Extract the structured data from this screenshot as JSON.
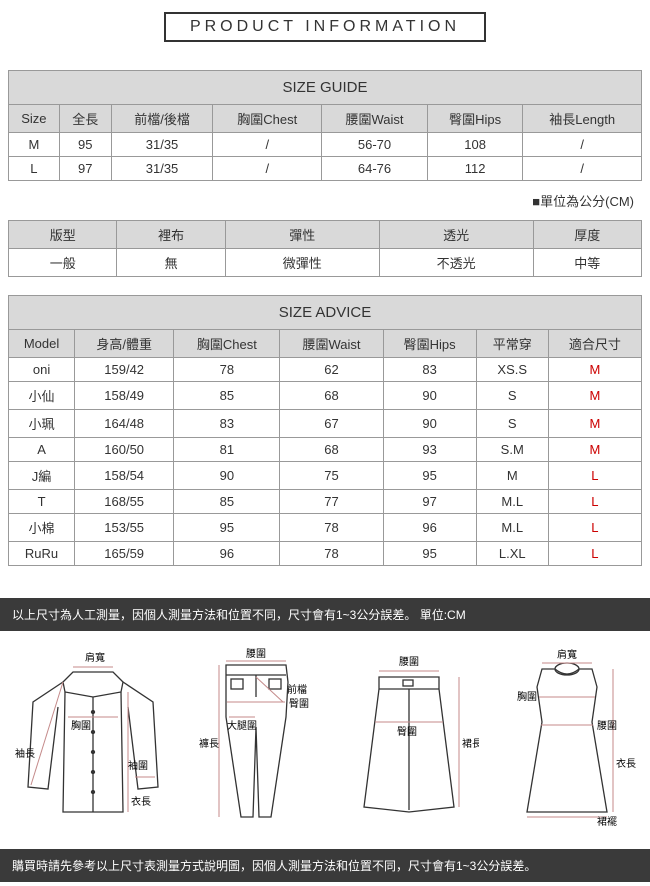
{
  "page_title": "PRODUCT INFORMATION",
  "colors": {
    "border": "#999999",
    "header_bg": "#d9d9d9",
    "text": "#333333",
    "red": "#cc0000",
    "dark_bar_bg": "#3a3a3a",
    "dark_bar_text": "#ffffff",
    "dim_line": "#c48a8a"
  },
  "size_guide": {
    "title": "SIZE GUIDE",
    "columns": [
      "Size",
      "全長",
      "前檔/後檔",
      "胸圍Chest",
      "腰圍Waist",
      "臀圍Hips",
      "袖長Length"
    ],
    "rows": [
      [
        "M",
        "95",
        "31/35",
        "/",
        "56-70",
        "108",
        "/"
      ],
      [
        "L",
        "97",
        "31/35",
        "/",
        "64-76",
        "112",
        "/"
      ]
    ],
    "unit_note": "■單位為公分(CM)"
  },
  "attributes": {
    "columns": [
      "版型",
      "裡布",
      "彈性",
      "透光",
      "厚度"
    ],
    "values": [
      "一般",
      "無",
      "微彈性",
      "不透光",
      "中等"
    ]
  },
  "size_advice": {
    "title": "SIZE ADVICE",
    "columns": [
      "Model",
      "身高/體重",
      "胸圍Chest",
      "腰圍Waist",
      "臀圍Hips",
      "平常穿",
      "適合尺寸"
    ],
    "rows": [
      [
        "oni",
        "159/42",
        "78",
        "62",
        "83",
        "XS.S",
        "M"
      ],
      [
        "小仙",
        "158/49",
        "85",
        "68",
        "90",
        "S",
        "M"
      ],
      [
        "小珮",
        "164/48",
        "83",
        "67",
        "90",
        "S",
        "M"
      ],
      [
        "A",
        "160/50",
        "81",
        "68",
        "93",
        "S.M",
        "M"
      ],
      [
        "J編",
        "158/54",
        "90",
        "75",
        "95",
        "M",
        "L"
      ],
      [
        "T",
        "168/55",
        "85",
        "77",
        "97",
        "M.L",
        "L"
      ],
      [
        "小棉",
        "153/55",
        "95",
        "78",
        "96",
        "M.L",
        "L"
      ],
      [
        "RuRu",
        "165/59",
        "96",
        "78",
        "95",
        "L.XL",
        "L"
      ]
    ]
  },
  "note_top": "以上尺寸為人工測量，因個人測量方法和位置不同，尺寸會有1~3公分誤差。 單位:CM",
  "note_bottom": "購買時請先參考以上尺寸表測量方式說明圖，因個人測量方法和位置不同，尺寸會有1~3公分誤差。",
  "diagrams": {
    "shirt": {
      "labels": {
        "shoulder": "肩寬",
        "chest": "胸圍",
        "sleeve": "袖長",
        "cuff": "袖圍",
        "length": "衣長"
      }
    },
    "pants": {
      "labels": {
        "waist": "腰圍",
        "front": "前檔",
        "hip": "臀圍",
        "thigh": "大腿圍",
        "length": "褲長"
      }
    },
    "skirt": {
      "labels": {
        "waist": "腰圍",
        "hip": "臀圍",
        "length": "裙長"
      }
    },
    "dress": {
      "labels": {
        "shoulder": "肩寬",
        "chest": "胸圍",
        "waist": "腰圍",
        "length": "衣長",
        "hem": "裙襬"
      }
    }
  }
}
